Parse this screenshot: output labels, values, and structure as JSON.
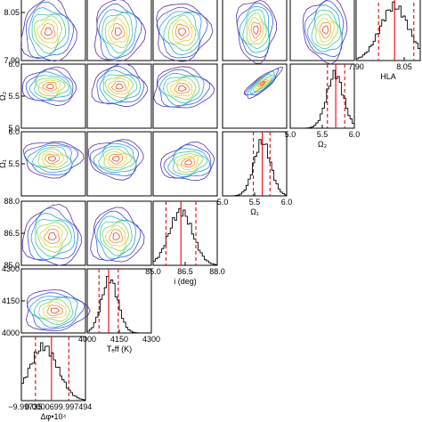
{
  "chart_data": {
    "type": "corner",
    "parameters": [
      {
        "key": "dphi",
        "label": "Δφ•10⁴",
        "range": [
          -9.99735,
          -9.99749
        ],
        "ticks": [],
        "tick_labels": [],
        "hist_center": 0.35,
        "hist_sigma": 0.22,
        "hist_quantiles": [
          0.22,
          0.47,
          0.74
        ]
      },
      {
        "key": "teff",
        "label": "Tₑff (K)",
        "range": [
          4000,
          4300
        ],
        "ticks": [
          4000,
          4150,
          4300
        ],
        "tick_labels": [
          "4000",
          "4150",
          "4300"
        ],
        "hist_center": 4105,
        "hist_sigma": 38,
        "hist_quantiles": [
          4055,
          4100,
          4145
        ]
      },
      {
        "key": "incl",
        "label": "i (deg)",
        "range": [
          85.0,
          88.0
        ],
        "ticks": [
          85.0,
          86.5,
          88.0
        ],
        "tick_labels": [
          "85.0",
          "86.5",
          "88.0"
        ],
        "hist_center": 86.3,
        "hist_sigma": 0.55,
        "hist_quantiles": [
          85.6,
          86.3,
          87.0
        ]
      },
      {
        "key": "omega1",
        "label": "Ω₁",
        "range": [
          5.0,
          6.0
        ],
        "ticks": [
          5.0,
          5.5,
          6.0
        ],
        "tick_labels": [
          "5.0",
          "5.5",
          "6.0"
        ],
        "hist_center": 5.62,
        "hist_sigma": 0.13,
        "hist_quantiles": [
          5.48,
          5.62,
          5.74
        ]
      },
      {
        "key": "omega2",
        "label": "Ω₂",
        "range": [
          5.0,
          6.0
        ],
        "ticks": [
          5.0,
          5.5,
          6.0
        ],
        "tick_labels": [
          "5.0",
          "5.5",
          "6.0"
        ],
        "hist_center": 5.7,
        "hist_sigma": 0.13,
        "hist_quantiles": [
          5.58,
          5.71,
          5.85
        ]
      },
      {
        "key": "hla",
        "label": "HLA",
        "range": [
          7.9,
          8.1
        ],
        "ticks": [
          7.9,
          8.05
        ],
        "tick_labels": [
          "7.90",
          "8.05"
        ],
        "hist_center": 8.02,
        "hist_sigma": 0.045,
        "hist_quantiles": [
          7.97,
          8.02,
          8.08
        ]
      }
    ],
    "row_axes": [
      {
        "param": "hla",
        "ticks": [
          8.05,
          7.9
        ],
        "tick_labels": [
          "8.05",
          "7.90"
        ],
        "label": ""
      },
      {
        "param": "omega2",
        "ticks": [
          6.0,
          5.5,
          5.0
        ],
        "tick_labels": [
          "6.0",
          "5.5",
          "5.0"
        ],
        "label": "Ω₂"
      },
      {
        "param": "omega1",
        "ticks": [
          6.0,
          5.5
        ],
        "tick_labels": [
          "6.0",
          "5.5"
        ],
        "label": "Ω₁"
      },
      {
        "param": "incl",
        "ticks": [
          88.0,
          86.5,
          85.0
        ],
        "tick_labels": [
          "88.0",
          "86.5",
          "85.0"
        ],
        "label": ""
      },
      {
        "param": "teff",
        "ticks": [
          4300,
          4150,
          4000
        ],
        "tick_labels": [
          "4300",
          "4150",
          "4000"
        ],
        "label": ""
      }
    ],
    "bottom_tick_labels": [
      {
        "text": "−9.99735",
        "x": 0.06
      },
      {
        "text": "0.0000699.997494",
        "x": 0.58
      }
    ],
    "contour_pairs": [
      {
        "row": 0,
        "col": 0,
        "cx": 0.42,
        "cy": 0.55,
        "rx": 0.42,
        "ry": 0.48,
        "rot": 0
      },
      {
        "row": 0,
        "col": 1,
        "cx": 0.48,
        "cy": 0.55,
        "rx": 0.38,
        "ry": 0.48,
        "rot": 0
      },
      {
        "row": 0,
        "col": 2,
        "cx": 0.45,
        "cy": 0.55,
        "rx": 0.42,
        "ry": 0.45,
        "rot": 0
      },
      {
        "row": 0,
        "col": 3,
        "cx": 0.52,
        "cy": 0.52,
        "rx": 0.3,
        "ry": 0.48,
        "rot": 0
      },
      {
        "row": 0,
        "col": 4,
        "cx": 0.55,
        "cy": 0.52,
        "rx": 0.34,
        "ry": 0.48,
        "rot": 0
      },
      {
        "row": 1,
        "col": 0,
        "cx": 0.45,
        "cy": 0.35,
        "rx": 0.42,
        "ry": 0.28,
        "rot": 0
      },
      {
        "row": 1,
        "col": 1,
        "cx": 0.5,
        "cy": 0.35,
        "rx": 0.42,
        "ry": 0.32,
        "rot": 0
      },
      {
        "row": 1,
        "col": 2,
        "cx": 0.45,
        "cy": 0.38,
        "rx": 0.45,
        "ry": 0.32,
        "rot": 0
      },
      {
        "row": 1,
        "col": 3,
        "cx": 0.62,
        "cy": 0.3,
        "rx": 0.35,
        "ry": 0.1,
        "rot": -38
      },
      {
        "row": 2,
        "col": 0,
        "cx": 0.48,
        "cy": 0.42,
        "rx": 0.45,
        "ry": 0.28,
        "rot": 0
      },
      {
        "row": 2,
        "col": 1,
        "cx": 0.45,
        "cy": 0.42,
        "rx": 0.42,
        "ry": 0.3,
        "rot": 0
      },
      {
        "row": 2,
        "col": 2,
        "cx": 0.55,
        "cy": 0.48,
        "rx": 0.42,
        "ry": 0.28,
        "rot": -10
      },
      {
        "row": 3,
        "col": 0,
        "cx": 0.48,
        "cy": 0.55,
        "rx": 0.45,
        "ry": 0.45,
        "rot": 0
      },
      {
        "row": 3,
        "col": 1,
        "cx": 0.45,
        "cy": 0.55,
        "rx": 0.4,
        "ry": 0.42,
        "rot": 0
      },
      {
        "row": 4,
        "col": 0,
        "cx": 0.52,
        "cy": 0.65,
        "rx": 0.48,
        "ry": 0.32,
        "rot": 0
      }
    ],
    "contour_colors": [
      "#5b2ca8",
      "#3a55d8",
      "#2a9de0",
      "#38c9a4",
      "#8fd44a",
      "#e3d13a",
      "#f08a2a",
      "#e0402a"
    ],
    "median_color": "#e8000b"
  }
}
